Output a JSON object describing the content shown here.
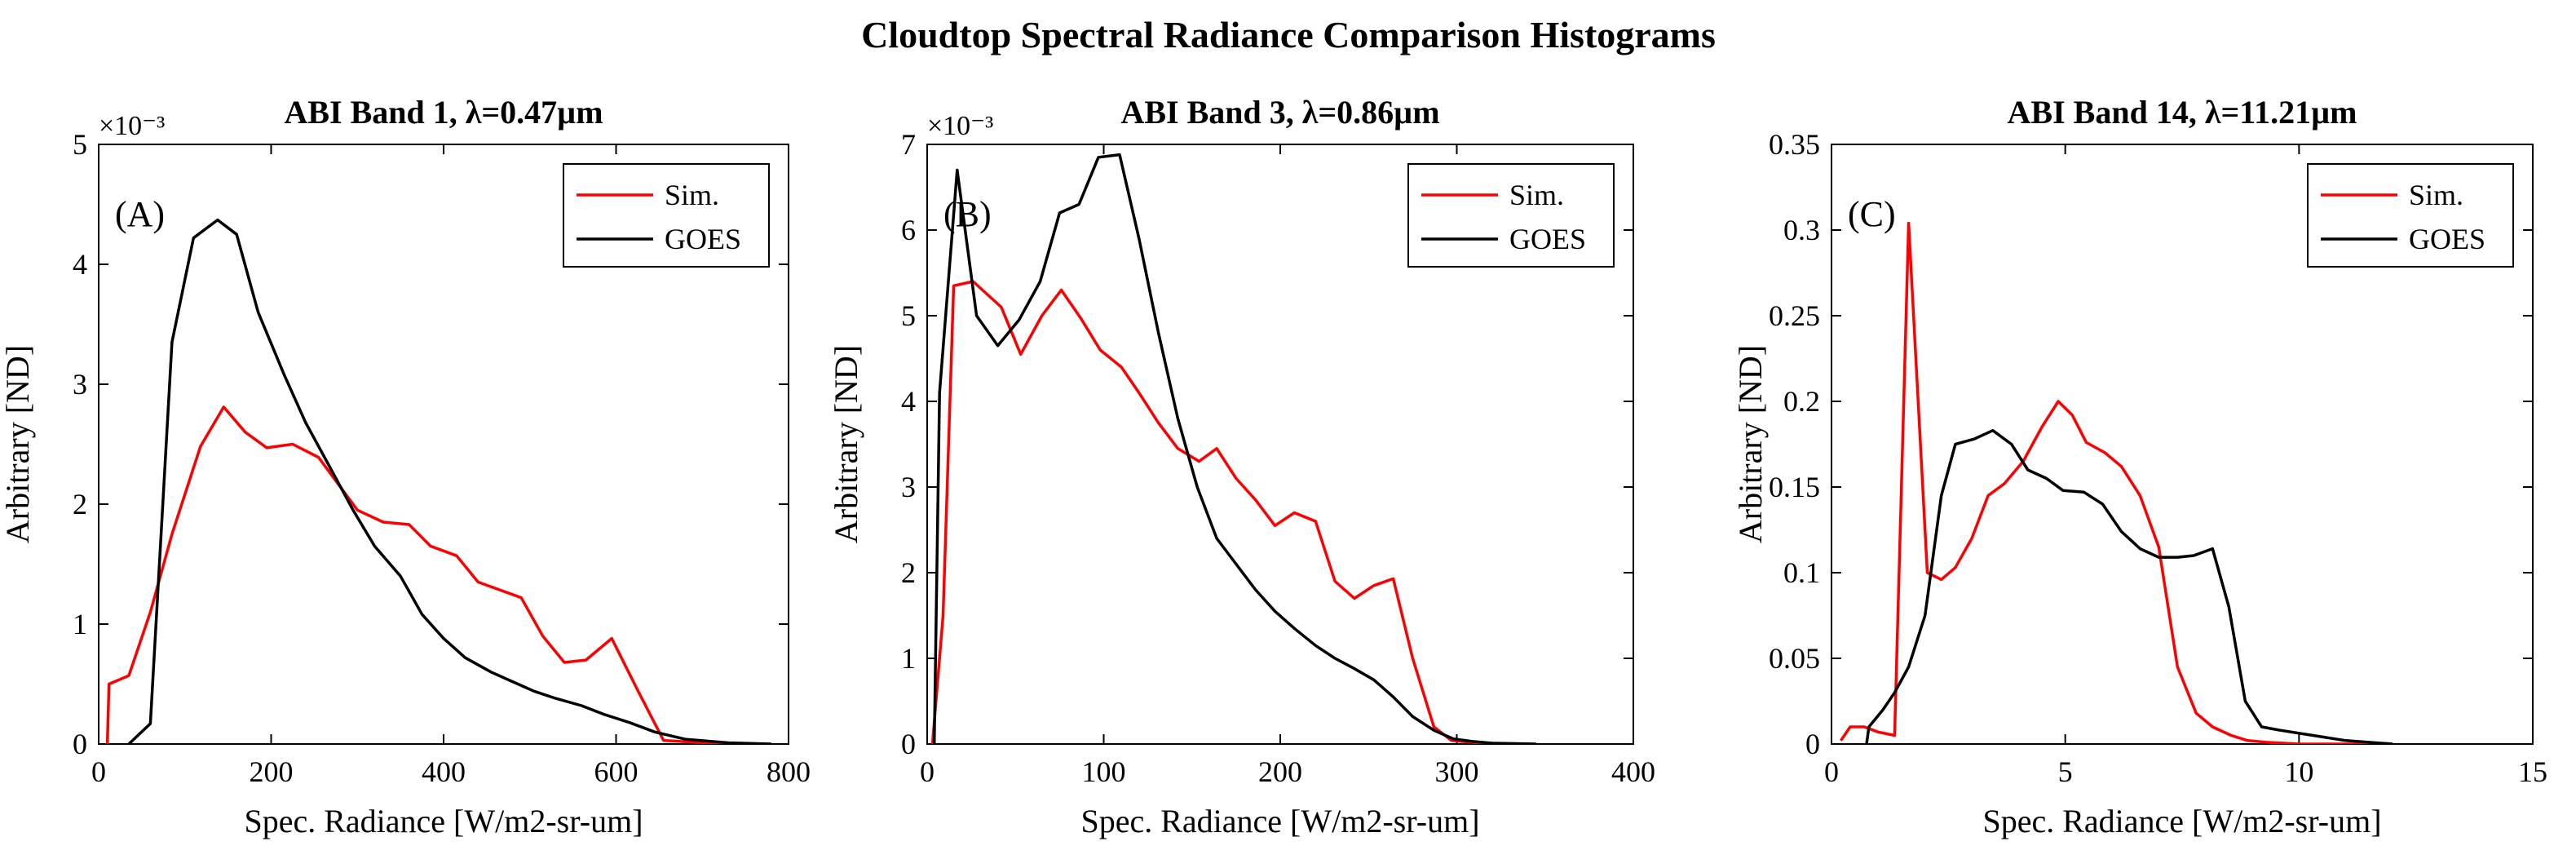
{
  "figure": {
    "title": "Cloudtop Spectral Radiance Comparison Histograms"
  },
  "colors": {
    "sim": "#ff0000",
    "goes": "#000000"
  },
  "chart_data": [
    {
      "type": "line",
      "panel_label": "(A)",
      "title": "ABI Band 1, λ=0.47µm",
      "xlabel": "Spec. Radiance [W/m2-sr-um]",
      "ylabel": "Arbitrary [ND]",
      "xlim": [
        0,
        800
      ],
      "ylim": [
        0,
        5
      ],
      "x_ticks": [
        0,
        200,
        400,
        600,
        800
      ],
      "y_ticks": [
        0,
        1,
        2,
        3,
        4,
        5
      ],
      "y_exponent": "×10⁻³",
      "legend": [
        "Sim.",
        "GOES"
      ],
      "legend_position": "top-right",
      "series": [
        {
          "name": "Sim.",
          "color": "#ff0000",
          "x": [
            10,
            12,
            35,
            60,
            85,
            118,
            145,
            170,
            195,
            225,
            255,
            300,
            330,
            360,
            385,
            415,
            440,
            490,
            515,
            540,
            565,
            595,
            625,
            655,
            700,
            760
          ],
          "y": [
            0,
            0.5,
            0.57,
            1.1,
            1.75,
            2.48,
            2.81,
            2.6,
            2.47,
            2.5,
            2.39,
            1.95,
            1.85,
            1.83,
            1.65,
            1.57,
            1.35,
            1.22,
            0.9,
            0.68,
            0.7,
            0.88,
            0.45,
            0.03,
            0.01,
            0
          ]
        },
        {
          "name": "GOES",
          "color": "#000000",
          "x": [
            35,
            60,
            85,
            110,
            138,
            160,
            185,
            215,
            240,
            265,
            295,
            320,
            350,
            375,
            400,
            425,
            455,
            480,
            505,
            530,
            560,
            585,
            615,
            645,
            680,
            730,
            780
          ],
          "y": [
            0,
            0.17,
            3.35,
            4.22,
            4.37,
            4.25,
            3.6,
            3.08,
            2.68,
            2.35,
            1.95,
            1.65,
            1.4,
            1.08,
            0.88,
            0.72,
            0.6,
            0.52,
            0.44,
            0.38,
            0.32,
            0.25,
            0.18,
            0.1,
            0.04,
            0.01,
            0
          ]
        }
      ]
    },
    {
      "type": "line",
      "panel_label": "(B)",
      "title": "ABI Band 3, λ=0.86µm",
      "xlabel": "Spec. Radiance [W/m2-sr-um]",
      "ylabel": "Arbitrary [ND]",
      "xlim": [
        0,
        400
      ],
      "ylim": [
        0,
        7
      ],
      "x_ticks": [
        0,
        100,
        200,
        300,
        400
      ],
      "y_ticks": [
        0,
        1,
        2,
        3,
        4,
        5,
        6,
        7
      ],
      "y_exponent": "×10⁻³",
      "legend": [
        "Sim.",
        "GOES"
      ],
      "legend_position": "top-right",
      "series": [
        {
          "name": "Sim.",
          "color": "#ff0000",
          "x": [
            3,
            9,
            15,
            26,
            42,
            53,
            65,
            76,
            87,
            98,
            110,
            120,
            131,
            142,
            154,
            164,
            175,
            186,
            197,
            208,
            220,
            231,
            242,
            253,
            264,
            275,
            287,
            297,
            308,
            320,
            340
          ],
          "y": [
            0,
            1.5,
            5.35,
            5.4,
            5.1,
            4.55,
            5.0,
            5.3,
            4.97,
            4.6,
            4.4,
            4.1,
            3.75,
            3.45,
            3.3,
            3.45,
            3.1,
            2.85,
            2.55,
            2.7,
            2.6,
            1.9,
            1.7,
            1.85,
            1.93,
            1.0,
            0.2,
            0.04,
            0.02,
            0.01,
            0
          ]
        },
        {
          "name": "GOES",
          "color": "#000000",
          "x": [
            4,
            7,
            17,
            28,
            40,
            52,
            64,
            75,
            86,
            97,
            109,
            120,
            131,
            142,
            153,
            164,
            175,
            186,
            197,
            208,
            220,
            231,
            242,
            253,
            264,
            275,
            287,
            298,
            309,
            320,
            345
          ],
          "y": [
            0,
            4.1,
            6.7,
            5.0,
            4.65,
            4.95,
            5.4,
            6.2,
            6.3,
            6.85,
            6.88,
            5.9,
            4.8,
            3.8,
            3.0,
            2.4,
            2.1,
            1.8,
            1.55,
            1.35,
            1.15,
            1.0,
            0.88,
            0.75,
            0.55,
            0.32,
            0.16,
            0.06,
            0.03,
            0.01,
            0
          ]
        }
      ]
    },
    {
      "type": "line",
      "panel_label": "(C)",
      "title": "ABI Band 14, λ=11.21µm",
      "xlabel": "Spec. Radiance [W/m2-sr-um]",
      "ylabel": "Arbitrary [ND]",
      "xlim": [
        0,
        15
      ],
      "ylim": [
        0,
        0.35
      ],
      "x_ticks": [
        0,
        5,
        10,
        15
      ],
      "y_ticks": [
        0,
        0.05,
        0.1,
        0.15,
        0.2,
        0.25,
        0.3,
        0.35
      ],
      "y_tick_labels": [
        "0",
        "0.05",
        "0.1",
        "0.15",
        "0.2",
        "0.25",
        "0.3",
        "0.35"
      ],
      "legend": [
        "Sim.",
        "GOES"
      ],
      "legend_position": "top-right",
      "series": [
        {
          "name": "Sim.",
          "color": "#ff0000",
          "x": [
            0.2,
            0.4,
            0.7,
            1.0,
            1.35,
            1.65,
            2.05,
            2.35,
            2.65,
            3.0,
            3.35,
            3.7,
            4.1,
            4.5,
            4.85,
            5.15,
            5.45,
            5.85,
            6.2,
            6.6,
            7.0,
            7.4,
            7.8,
            8.15,
            8.55,
            8.9,
            9.3,
            10.0,
            11.0,
            11.5
          ],
          "y": [
            0.002,
            0.01,
            0.01,
            0.007,
            0.005,
            0.304,
            0.1,
            0.096,
            0.103,
            0.12,
            0.145,
            0.152,
            0.165,
            0.185,
            0.2,
            0.192,
            0.176,
            0.17,
            0.162,
            0.145,
            0.115,
            0.045,
            0.018,
            0.01,
            0.005,
            0.002,
            0.001,
            0,
            0,
            0
          ]
        },
        {
          "name": "GOES",
          "color": "#000000",
          "x": [
            0.75,
            0.8,
            1.1,
            1.35,
            1.65,
            2.0,
            2.35,
            2.65,
            3.05,
            3.45,
            3.85,
            4.2,
            4.6,
            4.95,
            5.4,
            5.8,
            6.2,
            6.6,
            7.0,
            7.4,
            7.75,
            8.15,
            8.5,
            8.85,
            9.2,
            9.6,
            10.3,
            11.0,
            12.0
          ],
          "y": [
            0,
            0.01,
            0.02,
            0.03,
            0.045,
            0.075,
            0.145,
            0.175,
            0.178,
            0.183,
            0.175,
            0.16,
            0.155,
            0.148,
            0.147,
            0.14,
            0.124,
            0.114,
            0.109,
            0.109,
            0.11,
            0.114,
            0.08,
            0.025,
            0.01,
            0.008,
            0.005,
            0.002,
            0
          ]
        }
      ]
    }
  ]
}
